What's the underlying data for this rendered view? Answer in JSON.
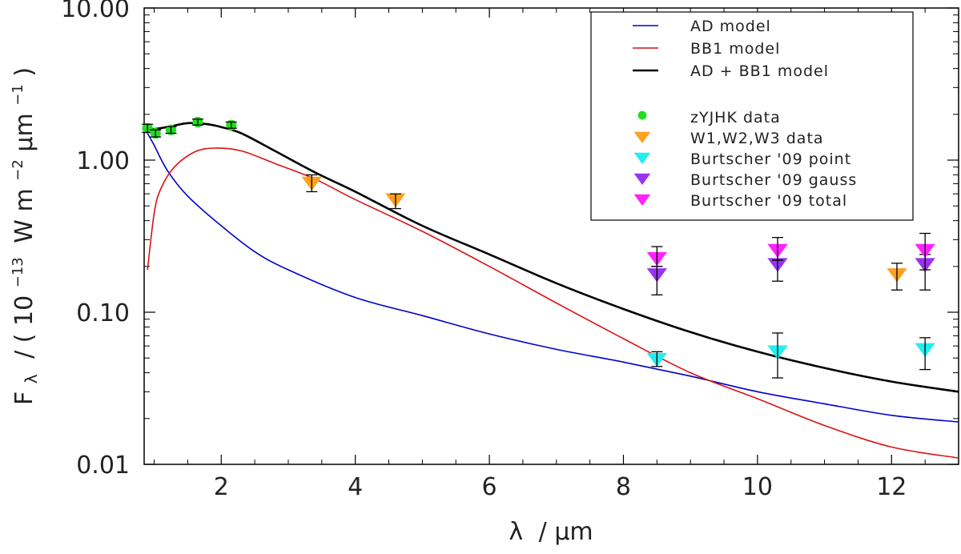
{
  "chart_data": {
    "type": "scatter",
    "xlabel": "λ /μm",
    "ylabel": "Fλ / (10⁻¹³ W m⁻²μm⁻¹)",
    "ylabel_parts": {
      "symbol": "F",
      "symbol_sub": "λ",
      "paren_open": "/ ( 10",
      "exp1": "−13",
      "mid": "W m",
      "exp2": "−2",
      "unit": "μm",
      "exp3": "−1",
      "paren_close": ")"
    },
    "xlabel_parts": {
      "symbol": "λ",
      "sep": "/",
      "unit": "μm"
    },
    "xlim": [
      0.85,
      13.0
    ],
    "ylim": [
      0.01,
      10.0
    ],
    "yscale": "log",
    "x_ticks": [
      2,
      4,
      6,
      8,
      10,
      12
    ],
    "x_tick_labels": [
      "2",
      "4",
      "6",
      "8",
      "10",
      "12"
    ],
    "y_ticks": [
      0.01,
      0.1,
      1,
      10
    ],
    "y_tick_labels": [
      "0.01",
      "0.10",
      "1.00",
      "10.00"
    ],
    "legend_position": "top-right",
    "lines": [
      {
        "name": "AD model",
        "color": "#0000cc",
        "x": [
          0.9,
          1.0,
          1.2,
          1.5,
          2.0,
          2.5,
          3.0,
          4.0,
          5.0,
          6.0,
          7.0,
          8.0,
          9.0,
          10.0,
          11.0,
          12.0,
          13.0
        ],
        "y": [
          1.5,
          1.25,
          0.85,
          0.58,
          0.37,
          0.25,
          0.19,
          0.125,
          0.095,
          0.072,
          0.057,
          0.047,
          0.038,
          0.03,
          0.025,
          0.021,
          0.019
        ]
      },
      {
        "name": "BB1 model",
        "color": "#dd1111",
        "x": [
          0.9,
          1.0,
          1.1,
          1.3,
          1.6,
          1.9,
          2.3,
          2.8,
          3.4,
          4.0,
          5.0,
          6.0,
          7.0,
          8.0,
          9.0,
          10.0,
          11.0,
          12.0,
          13.0
        ],
        "y": [
          0.19,
          0.45,
          0.65,
          0.9,
          1.13,
          1.2,
          1.15,
          0.95,
          0.75,
          0.55,
          0.34,
          0.2,
          0.115,
          0.067,
          0.04,
          0.027,
          0.018,
          0.013,
          0.011
        ]
      },
      {
        "name": "AD + BB1 model",
        "color": "#000000",
        "x": [
          0.9,
          1.0,
          1.2,
          1.5,
          1.8,
          2.0,
          2.3,
          2.8,
          3.4,
          4.0,
          5.0,
          6.0,
          7.0,
          8.0,
          9.0,
          10.0,
          11.0,
          12.0,
          13.0
        ],
        "y": [
          1.6,
          1.6,
          1.65,
          1.75,
          1.72,
          1.65,
          1.5,
          1.15,
          0.83,
          0.62,
          0.37,
          0.24,
          0.155,
          0.105,
          0.074,
          0.055,
          0.043,
          0.035,
          0.03
        ]
      }
    ],
    "series": [
      {
        "name": "zYJHK data",
        "color": "#22dd22",
        "marker": "circle",
        "x": [
          0.9,
          1.02,
          1.25,
          1.65,
          2.15
        ],
        "y": [
          1.62,
          1.5,
          1.58,
          1.78,
          1.7
        ],
        "yerr_low": [
          1.52,
          1.42,
          1.5,
          1.7,
          1.62
        ],
        "yerr_high": [
          1.72,
          1.58,
          1.66,
          1.86,
          1.78
        ]
      },
      {
        "name": "W1,W2,W3 data",
        "color": "#ffa020",
        "marker": "triangle-down",
        "x": [
          3.35,
          4.6,
          12.08
        ],
        "y": [
          0.72,
          0.56,
          0.18
        ],
        "yerr_low": [
          0.62,
          0.48,
          0.14
        ],
        "yerr_high": [
          0.8,
          0.6,
          0.21
        ]
      },
      {
        "name": "Burtscher '09 point",
        "color": "#22eeee",
        "marker": "triangle-down",
        "x": [
          8.5,
          10.3,
          12.5
        ],
        "y": [
          0.05,
          0.056,
          0.058
        ],
        "yerr_low": [
          0.044,
          0.037,
          0.042
        ],
        "yerr_high": [
          0.055,
          0.073,
          0.068
        ]
      },
      {
        "name": "Burtscher '09 gauss",
        "color": "#9933ee",
        "marker": "triangle-down",
        "x": [
          8.5,
          10.3,
          12.5
        ],
        "y": [
          0.18,
          0.21,
          0.21
        ],
        "yerr_low": [
          0.13,
          0.16,
          0.14
        ],
        "yerr_high": [
          0.2,
          0.22,
          0.24
        ]
      },
      {
        "name": "Burtscher '09 total",
        "color": "#ff22ff",
        "marker": "triangle-down",
        "x": [
          8.5,
          10.3,
          12.5
        ],
        "y": [
          0.23,
          0.26,
          0.26
        ],
        "yerr_low": [
          0.2,
          0.22,
          0.19
        ],
        "yerr_high": [
          0.27,
          0.31,
          0.33
        ]
      }
    ]
  }
}
